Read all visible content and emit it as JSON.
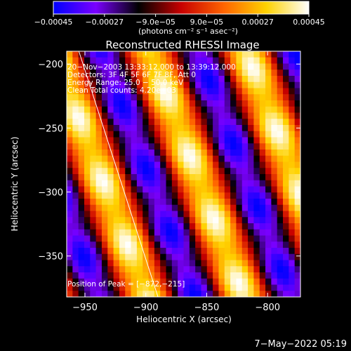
{
  "chart_data": {
    "type": "heatmap",
    "title": "Reconstructed RHESSI Image",
    "xlabel": "Heliocentric X (arcsec)",
    "ylabel": "Heliocentric Y (arcsec)",
    "xlim": [
      -965,
      -773
    ],
    "ylim": [
      -382,
      -190
    ],
    "x_ticks": [
      -950,
      -900,
      -850,
      -800
    ],
    "x_tick_labels": [
      "−950",
      "−900",
      "−850",
      "−800"
    ],
    "y_ticks": [
      -200,
      -250,
      -300,
      -350
    ],
    "y_tick_labels": [
      "−200",
      "−250",
      "−300",
      "−350"
    ],
    "colorbar": {
      "range": [
        -0.00045,
        0.00045
      ],
      "ticks": [
        -0.00045,
        -0.00027,
        -9e-05,
        9e-05,
        0.00027,
        0.00045
      ],
      "tick_labels": [
        "−0.00045",
        "−0.00027",
        "−9.0e−05",
        "9.0e−05",
        "0.00027",
        "0.00045"
      ],
      "unit_label": "(photons cm⁻² s⁻¹ asec⁻²)",
      "colormap": [
        "#0000ff",
        "#7a00ff",
        "#000000",
        "#c80000",
        "#ff6400",
        "#ffd200",
        "#ffffff"
      ]
    },
    "annotations": [
      "20−Nov−2003 13:33:12.000 to 13:39:12.000",
      "Detectors: 3F 4F 5F 6F 7F 8F, Att 0",
      "Energy Range: 25.0 − 50.0 keV",
      "Clean    Total counts: 4.20e+03"
    ],
    "peak_label": "Position of Peak = [−872,−215]",
    "peak_position": [
      -872,
      -215
    ],
    "limb_line": [
      [
        -955,
        -190
      ],
      [
        -890,
        -382
      ]
    ],
    "pattern": {
      "description_values": "diagonal fringe pattern",
      "value_range": [
        -0.00045,
        0.00045
      ]
    }
  },
  "footer": {
    "date": "7−May−2022 05:19"
  }
}
